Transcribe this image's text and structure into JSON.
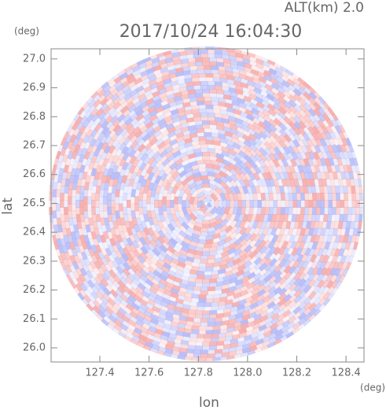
{
  "chart_data": {
    "type": "radar-ppi",
    "title": "2017/10/24 16:04:30",
    "altitude_label": "ALT(km) 2.0",
    "x_label": "lon",
    "y_label": "lat",
    "x_unit": "(deg)",
    "y_unit": "(deg)",
    "xlim": [
      127.202,
      128.473
    ],
    "ylim": [
      25.951,
      27.035
    ],
    "xticks": [
      127.4,
      127.6,
      127.8,
      {
        "value": 128,
        "label": "128.0"
      },
      128.2,
      128.4
    ],
    "yticks": [
      {
        "value": 26,
        "label": "26.0"
      },
      26.1,
      26.2,
      26.3,
      26.4,
      26.5,
      26.6,
      26.7,
      26.8,
      26.9,
      {
        "value": 27,
        "label": "27.0"
      }
    ],
    "colors": [
      "#f4a6a6",
      "#b0b6f6"
    ]
  }
}
